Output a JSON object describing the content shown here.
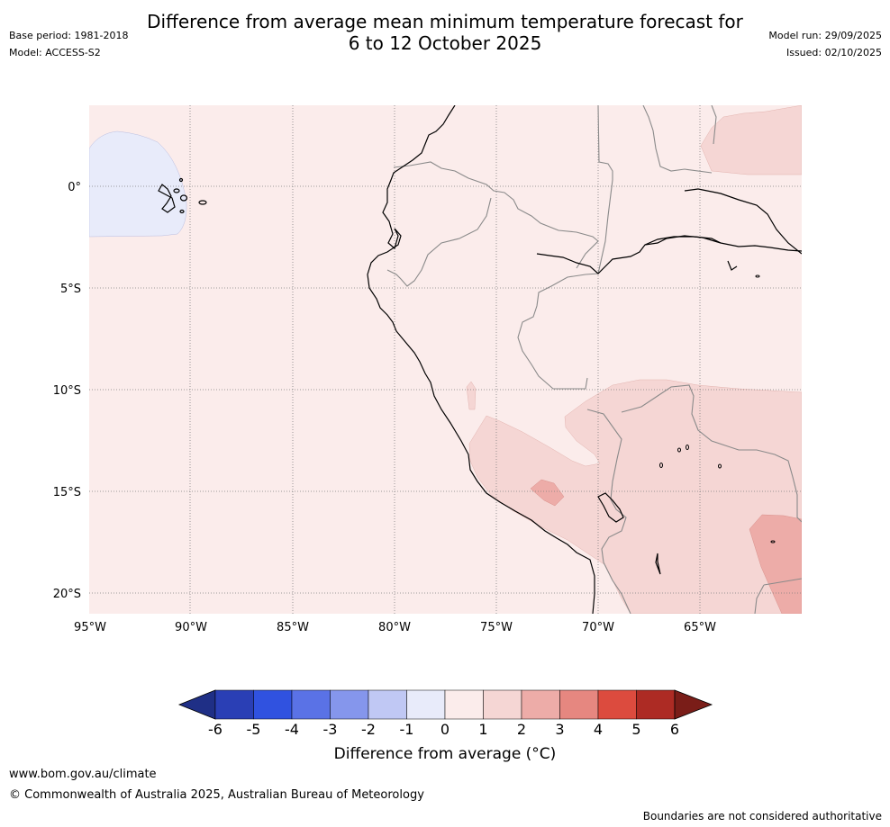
{
  "title_line1": "Difference from average mean minimum temperature forecast for",
  "title_line2": "6 to 12 October 2025",
  "base_period": "Base period: 1981-2018",
  "model": "Model: ACCESS-S2",
  "model_run": "Model run: 29/09/2025",
  "issued": "Issued: 02/10/2025",
  "map": {
    "lon_range": [
      -95,
      -60
    ],
    "lat_range": [
      -21,
      4
    ],
    "lat_labels": [
      "0°",
      "5°S",
      "10°S",
      "15°S",
      "20°S"
    ],
    "lon_labels": [
      "95°W",
      "90°W",
      "85°W",
      "80°W",
      "75°W",
      "70°W",
      "65°W"
    ],
    "regions": [
      {
        "name": "galapagos-cool-anomaly-region",
        "category": "-1 to 0"
      },
      {
        "name": "background-anomaly-region",
        "category": "0 to 1"
      },
      {
        "name": "northeast-warm-anomaly-region",
        "category": "1 to 2"
      },
      {
        "name": "southern-warm-anomaly-region",
        "category": "1 to 2"
      },
      {
        "name": "peru-hotspot-region",
        "category": "2 to 3"
      },
      {
        "name": "bolivia-hotspot-region",
        "category": "2 to 3"
      }
    ]
  },
  "colorbar": {
    "ticks": [
      "-6",
      "-5",
      "-4",
      "-3",
      "-2",
      "-1",
      "0",
      "1",
      "2",
      "3",
      "4",
      "5",
      "6"
    ],
    "colors": [
      "#1f2f86",
      "#2a3fb5",
      "#3052e0",
      "#5a72e6",
      "#8596ec",
      "#c0c8f4",
      "#e8ebfa",
      "#fbeceb",
      "#f5d6d4",
      "#edaca8",
      "#e68780",
      "#dc4b3e",
      "#ad2b24",
      "#7a1d18"
    ],
    "label": "Difference from average (°C)"
  },
  "footer": {
    "url": "www.bom.gov.au/climate",
    "copyright": "© Commonwealth of Australia 2025, Australian Bureau of Meteorology",
    "disclaimer": "Boundaries are not considered authoritative"
  }
}
